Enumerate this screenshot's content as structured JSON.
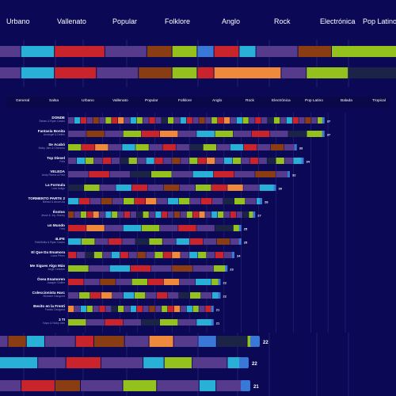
{
  "colors": {
    "background": "#0b0956",
    "panel": "#0a0849",
    "grid": "#3b3a8e",
    "Urbano": "#563a8c",
    "Vallenato": "#29b0d6",
    "Popular": "#c9242c",
    "Folklore": "#8a3d12",
    "Anglo": "#95c11f",
    "Rock": "#ef8a3c",
    "Electrónica": "#1b2346",
    "Pop Latino": "#3a78d8",
    "end": "#3a78d8"
  },
  "top_genres": [
    "Urbano",
    "Vallenato",
    "Popular",
    "Folklore",
    "Anglo",
    "Rock",
    "Electrónica",
    "Pop Latino"
  ],
  "filter_tabs": [
    "General",
    "Salsa",
    "Urbano",
    "Vallenato",
    "Popular",
    "Folklore",
    "Anglo",
    "Rock",
    "Electrónica",
    "Pop Latino",
    "Balada",
    "Tropical"
  ],
  "chart_data": {
    "type": "bar",
    "orientation": "horizontal",
    "stacked": true,
    "categories": [
      "DONDE",
      "Fantasía Bonita",
      "Se Acabó",
      "Top Diesel",
      "VELEDA",
      "La Formula",
      "TORMENTO PARTE 2",
      "Ésstos",
      "un Mundo",
      "4LIFE",
      "El Que Da Enamora",
      "Me Sigues Algo Más",
      "Ósea Enamoren",
      "Coleccionista Harc",
      "Besito en la Frenti",
      "3 TI"
    ],
    "artists": [
      "Sebas & Ryan Castro",
      "Arcángel & Delirio",
      "Nicky Jam & Chencho",
      "Feid",
      "Andy Rivera & Feid",
      "Lola Indigo",
      "Blessd & Anuel AA",
      "Jesse & Joy Jhonny",
      "Feid",
      "ReikSkilla & Ryan Castro",
      "Lucía Pérez",
      "Jorge Celedón",
      "Joaquín Guiller",
      "Silvestre Dangond",
      "Fausto Dangond",
      "Kapo & Nicky Jam"
    ],
    "values": [
      37,
      37,
      33,
      34,
      32,
      30,
      28,
      27,
      25,
      25,
      24,
      23,
      22,
      22,
      21,
      21
    ],
    "legend": [
      "Urbano",
      "Vallenato",
      "Popular",
      "Folklore",
      "Anglo",
      "Rock",
      "Electrónica",
      "Pop Latino"
    ],
    "visible_value_labels": [
      "37",
      "37",
      "33",
      "34",
      "32",
      "30",
      "28",
      "27",
      "25",
      "25",
      "24",
      "23",
      "22",
      "22",
      "21",
      "21",
      "22",
      "22",
      "21"
    ],
    "grid": true
  },
  "zoom_rows_top": [
    [
      [
        "Urbano",
        3
      ],
      [
        "Vallenato",
        4
      ],
      [
        "Popular",
        6
      ],
      [
        "Urbano",
        5
      ],
      [
        "Folklore",
        3
      ],
      [
        "Anglo",
        3
      ],
      [
        "Pop Latino",
        2
      ],
      [
        "Popular",
        3
      ],
      [
        "Vallenato",
        2
      ],
      [
        "Urbano",
        5
      ],
      [
        "Folklore",
        4
      ],
      [
        "Anglo",
        10
      ]
    ],
    [
      [
        "Urbano",
        3
      ],
      [
        "Vallenato",
        4
      ],
      [
        "Popular",
        5
      ],
      [
        "Urbano",
        5
      ],
      [
        "Folklore",
        4
      ],
      [
        "Anglo",
        3
      ],
      [
        "Popular",
        2
      ],
      [
        "Rock",
        8
      ],
      [
        "Urbano",
        3
      ],
      [
        "Anglo",
        5
      ],
      [
        "Electrónica",
        9
      ]
    ]
  ],
  "zoom_rows_bottom": [
    [
      [
        "Urbano",
        2
      ],
      [
        "Folklore",
        3
      ],
      [
        "Vallenato",
        3
      ],
      [
        "Urbano",
        5
      ],
      [
        "Popular",
        3
      ],
      [
        "Folklore",
        5
      ],
      [
        "Urbano",
        4
      ],
      [
        "Rock",
        4
      ],
      [
        "Urbano",
        4
      ],
      [
        "Pop Latino",
        3
      ],
      [
        "Electrónica",
        5
      ],
      [
        "Anglo",
        2
      ]
    ],
    [
      [
        "Vallenato",
        6
      ],
      [
        "Urbano",
        4
      ],
      [
        "Popular",
        5
      ],
      [
        "Urbano",
        6
      ],
      [
        "Vallenato",
        3
      ],
      [
        "Anglo",
        4
      ],
      [
        "Urbano",
        5
      ],
      [
        "Vallenato",
        3
      ]
    ],
    [
      [
        "Urbano",
        3
      ],
      [
        "Popular",
        4
      ],
      [
        "Folklore",
        3
      ],
      [
        "Urbano",
        5
      ],
      [
        "Anglo",
        4
      ],
      [
        "Urbano",
        5
      ],
      [
        "Vallenato",
        2
      ],
      [
        "Urbano",
        4
      ]
    ]
  ],
  "zoom_bottom_labels": [
    "22",
    "22",
    "21"
  ],
  "zoom_bottom_totals": [
    22,
    22,
    21
  ]
}
